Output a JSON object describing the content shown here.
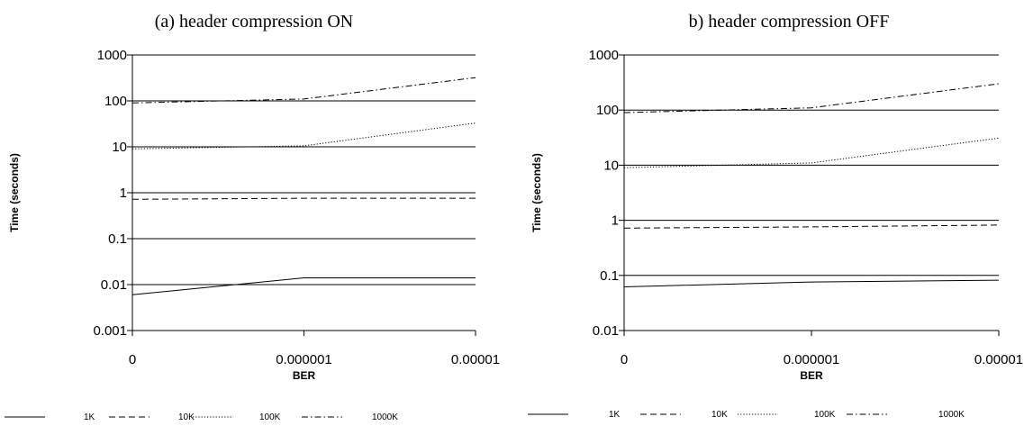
{
  "chart_data": [
    {
      "type": "line",
      "title": "(a) header compression ON",
      "xlabel": "BER",
      "ylabel": "Time (seconds)",
      "x": [
        "0",
        "0.000001",
        "0.00001"
      ],
      "y_scale": "log",
      "ylim": [
        0.001,
        1000
      ],
      "y_ticks": [
        "0.001",
        "0.01",
        "0.1",
        "1",
        "10",
        "100",
        "1000"
      ],
      "grid": true,
      "legend_position": "bottom",
      "series": [
        {
          "name": "1K",
          "values": [
            0.006,
            0.014,
            0.014
          ]
        },
        {
          "name": "10K",
          "values": [
            0.72,
            0.76,
            0.76
          ]
        },
        {
          "name": "100K",
          "values": [
            9,
            10.5,
            33
          ]
        },
        {
          "name": "1000K",
          "values": [
            90,
            110,
            320
          ]
        }
      ]
    },
    {
      "type": "line",
      "title": "b) header compression OFF",
      "xlabel": "BER",
      "ylabel": "Time (seconds)",
      "x": [
        "0",
        "0.000001",
        "0.00001"
      ],
      "y_scale": "log",
      "ylim": [
        0.01,
        1000
      ],
      "y_ticks": [
        "0.01",
        "0.1",
        "1",
        "10",
        "100",
        "1000"
      ],
      "grid": true,
      "legend_position": "bottom",
      "series": [
        {
          "name": "1K",
          "values": [
            0.062,
            0.076,
            0.082
          ]
        },
        {
          "name": "10K",
          "values": [
            0.72,
            0.76,
            0.82
          ]
        },
        {
          "name": "100K",
          "values": [
            9,
            11,
            31
          ]
        },
        {
          "name": "1000K",
          "values": [
            90,
            110,
            300
          ]
        }
      ]
    }
  ],
  "series_style": {
    "1K": "solid",
    "10K": "dashed",
    "100K": "dotted",
    "1000K": "dash-dot"
  },
  "colors": {
    "line": "#000000",
    "background": "#ffffff"
  }
}
